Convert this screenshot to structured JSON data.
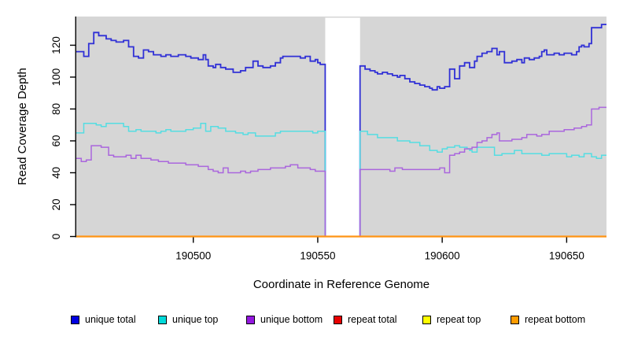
{
  "figure": {
    "xlabel": "Coordinate in Reference Genome",
    "ylabel": "Read Coverage Depth",
    "plot_background": "#d6d6d6",
    "axis_color": "#000000",
    "gap_fill": "#ffffff"
  },
  "chart_data": {
    "type": "line",
    "step": true,
    "title": "",
    "xlabel": "Coordinate in Reference Genome",
    "ylabel": "Read Coverage Depth",
    "xlim": [
      190453,
      190666
    ],
    "ylim": [
      0,
      138
    ],
    "x_ticks": [
      190500,
      190550,
      190600,
      190650
    ],
    "y_ticks": [
      0,
      20,
      40,
      60,
      80,
      100,
      120
    ],
    "grid": false,
    "legend_position": "bottom",
    "plot_bg": "#d6d6d6",
    "gap_region": {
      "start": 190553,
      "end": 190567,
      "fill": "#ffffff"
    },
    "series": [
      {
        "name": "unique total",
        "color": "#3030d6",
        "swatch": "#0000e0",
        "width": 1.8,
        "points": [
          [
            190453,
            116
          ],
          [
            190456,
            113
          ],
          [
            190458,
            121
          ],
          [
            190460,
            128
          ],
          [
            190462,
            126
          ],
          [
            190465,
            124
          ],
          [
            190467,
            123
          ],
          [
            190469,
            122
          ],
          [
            190472,
            123
          ],
          [
            190474,
            119
          ],
          [
            190476,
            113
          ],
          [
            190478,
            112
          ],
          [
            190480,
            117
          ],
          [
            190482,
            116
          ],
          [
            190484,
            114
          ],
          [
            190487,
            113
          ],
          [
            190489,
            114
          ],
          [
            190491,
            113
          ],
          [
            190494,
            114
          ],
          [
            190497,
            113
          ],
          [
            190499,
            112
          ],
          [
            190502,
            111
          ],
          [
            190504,
            114
          ],
          [
            190505,
            111
          ],
          [
            190506,
            107
          ],
          [
            190508,
            106
          ],
          [
            190509,
            108
          ],
          [
            190511,
            106
          ],
          [
            190513,
            105
          ],
          [
            190516,
            103
          ],
          [
            190519,
            104
          ],
          [
            190521,
            106
          ],
          [
            190524,
            110
          ],
          [
            190526,
            107
          ],
          [
            190528,
            106
          ],
          [
            190531,
            107
          ],
          [
            190533,
            109
          ],
          [
            190535,
            112
          ],
          [
            190536,
            113
          ],
          [
            190543,
            112
          ],
          [
            190545,
            113
          ],
          [
            190547,
            110
          ],
          [
            190549,
            111
          ],
          [
            190550,
            109
          ],
          [
            190551,
            108
          ],
          [
            190553,
            0
          ],
          [
            190567,
            107
          ],
          [
            190569,
            105
          ],
          [
            190571,
            104
          ],
          [
            190573,
            103
          ],
          [
            190574,
            102
          ],
          [
            190576,
            103
          ],
          [
            190578,
            102
          ],
          [
            190580,
            101
          ],
          [
            190582,
            100
          ],
          [
            190583,
            101
          ],
          [
            190585,
            99
          ],
          [
            190587,
            97
          ],
          [
            190589,
            96
          ],
          [
            190591,
            95
          ],
          [
            190593,
            94
          ],
          [
            190595,
            93
          ],
          [
            190596,
            92
          ],
          [
            190598,
            94
          ],
          [
            190599,
            93
          ],
          [
            190601,
            94
          ],
          [
            190603,
            105
          ],
          [
            190605,
            99
          ],
          [
            190607,
            107
          ],
          [
            190609,
            109
          ],
          [
            190611,
            106
          ],
          [
            190613,
            110
          ],
          [
            190614,
            113
          ],
          [
            190616,
            115
          ],
          [
            190618,
            116
          ],
          [
            190620,
            118
          ],
          [
            190622,
            114
          ],
          [
            190623,
            116
          ],
          [
            190625,
            109
          ],
          [
            190628,
            110
          ],
          [
            190630,
            111
          ],
          [
            190632,
            109
          ],
          [
            190633,
            112
          ],
          [
            190635,
            111
          ],
          [
            190637,
            112
          ],
          [
            190639,
            113
          ],
          [
            190640,
            116
          ],
          [
            190641,
            117
          ],
          [
            190642,
            114
          ],
          [
            190645,
            115
          ],
          [
            190647,
            114
          ],
          [
            190649,
            115
          ],
          [
            190652,
            114
          ],
          [
            190654,
            116
          ],
          [
            190655,
            119
          ],
          [
            190656,
            120
          ],
          [
            190657,
            119
          ],
          [
            190659,
            121
          ],
          [
            190660,
            131
          ],
          [
            190664,
            133
          ]
        ]
      },
      {
        "name": "unique top",
        "color": "#55dde2",
        "swatch": "#00d9d9",
        "width": 1.5,
        "points": [
          [
            190453,
            65
          ],
          [
            190456,
            71
          ],
          [
            190461,
            70
          ],
          [
            190463,
            69
          ],
          [
            190465,
            71
          ],
          [
            190472,
            69
          ],
          [
            190474,
            66
          ],
          [
            190477,
            67
          ],
          [
            190479,
            66
          ],
          [
            190485,
            65
          ],
          [
            190487,
            66
          ],
          [
            190489,
            67
          ],
          [
            190491,
            66
          ],
          [
            190497,
            67
          ],
          [
            190500,
            68
          ],
          [
            190503,
            71
          ],
          [
            190505,
            66
          ],
          [
            190507,
            69
          ],
          [
            190510,
            68
          ],
          [
            190513,
            66
          ],
          [
            190517,
            65
          ],
          [
            190520,
            64
          ],
          [
            190522,
            65
          ],
          [
            190525,
            63
          ],
          [
            190533,
            65
          ],
          [
            190535,
            66
          ],
          [
            190548,
            65
          ],
          [
            190550,
            66
          ],
          [
            190553,
            0
          ],
          [
            190567,
            66
          ],
          [
            190570,
            64
          ],
          [
            190574,
            62
          ],
          [
            190582,
            60
          ],
          [
            190587,
            59
          ],
          [
            190591,
            57
          ],
          [
            190595,
            54
          ],
          [
            190598,
            53
          ],
          [
            190600,
            55
          ],
          [
            190602,
            56
          ],
          [
            190605,
            57
          ],
          [
            190607,
            56
          ],
          [
            190610,
            55
          ],
          [
            190611,
            54
          ],
          [
            190612,
            53
          ],
          [
            190614,
            56
          ],
          [
            190621,
            51
          ],
          [
            190624,
            52
          ],
          [
            190629,
            54
          ],
          [
            190632,
            52
          ],
          [
            190640,
            51
          ],
          [
            190643,
            52
          ],
          [
            190650,
            50
          ],
          [
            190652,
            51
          ],
          [
            190655,
            50
          ],
          [
            190657,
            52
          ],
          [
            190660,
            50
          ],
          [
            190662,
            49
          ],
          [
            190664,
            51
          ]
        ]
      },
      {
        "name": "unique bottom",
        "color": "#aa66dd",
        "swatch": "#9418e0",
        "width": 1.5,
        "points": [
          [
            190453,
            49
          ],
          [
            190455,
            47
          ],
          [
            190457,
            48
          ],
          [
            190459,
            57
          ],
          [
            190463,
            56
          ],
          [
            190466,
            51
          ],
          [
            190468,
            50
          ],
          [
            190473,
            51
          ],
          [
            190475,
            49
          ],
          [
            190477,
            51
          ],
          [
            190479,
            49
          ],
          [
            190483,
            48
          ],
          [
            190486,
            47
          ],
          [
            190490,
            46
          ],
          [
            190497,
            45
          ],
          [
            190502,
            44
          ],
          [
            190506,
            42
          ],
          [
            190508,
            41
          ],
          [
            190510,
            40
          ],
          [
            190512,
            43
          ],
          [
            190514,
            40
          ],
          [
            190519,
            41
          ],
          [
            190521,
            40
          ],
          [
            190523,
            41
          ],
          [
            190526,
            42
          ],
          [
            190531,
            43
          ],
          [
            190537,
            44
          ],
          [
            190539,
            45
          ],
          [
            190542,
            43
          ],
          [
            190547,
            42
          ],
          [
            190549,
            41
          ],
          [
            190553,
            0
          ],
          [
            190567,
            42
          ],
          [
            190579,
            41
          ],
          [
            190581,
            43
          ],
          [
            190584,
            42
          ],
          [
            190597,
            42
          ],
          [
            190599,
            43
          ],
          [
            190601,
            40
          ],
          [
            190603,
            51
          ],
          [
            190605,
            52
          ],
          [
            190607,
            53
          ],
          [
            190609,
            55
          ],
          [
            190612,
            56
          ],
          [
            190614,
            59
          ],
          [
            190616,
            60
          ],
          [
            190618,
            62
          ],
          [
            190620,
            64
          ],
          [
            190622,
            65
          ],
          [
            190623,
            60
          ],
          [
            190626,
            60
          ],
          [
            190628,
            61
          ],
          [
            190632,
            62
          ],
          [
            190634,
            64
          ],
          [
            190636,
            64
          ],
          [
            190638,
            63
          ],
          [
            190640,
            64
          ],
          [
            190643,
            66
          ],
          [
            190649,
            67
          ],
          [
            190653,
            68
          ],
          [
            190656,
            69
          ],
          [
            190658,
            70
          ],
          [
            190660,
            80
          ],
          [
            190663,
            81
          ]
        ]
      },
      {
        "name": "repeat total",
        "color": "#e00000",
        "swatch": "#e80000",
        "width": 1.5,
        "points": [
          [
            190453,
            0
          ]
        ]
      },
      {
        "name": "repeat top",
        "color": "#ffff00",
        "swatch": "#ffff00",
        "width": 1.5,
        "points": [
          [
            190453,
            0
          ]
        ]
      },
      {
        "name": "repeat bottom",
        "color": "#ff9414",
        "swatch": "#ff9c00",
        "width": 2.2,
        "points": [
          [
            190453,
            0
          ]
        ]
      }
    ]
  },
  "legend": {
    "item_lefts": [
      90,
      201,
      313,
      424,
      537,
      649
    ]
  }
}
